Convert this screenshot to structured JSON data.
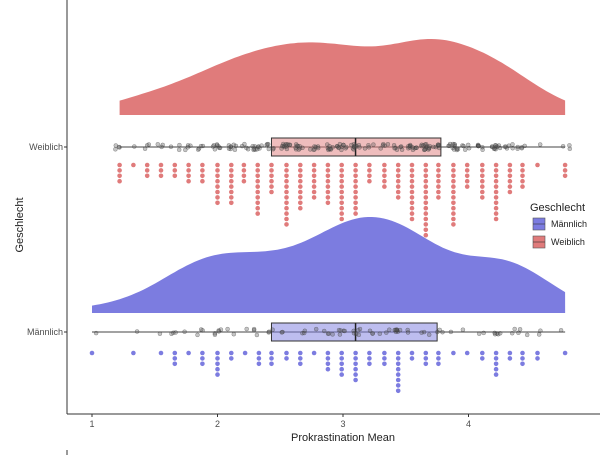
{
  "chart_data": {
    "type": "raincloud",
    "xlabel": "Prokrastination Mean",
    "ylabel": "Geschlecht",
    "xlim": [
      0.8,
      4.8
    ],
    "xticks": [
      "1",
      "2",
      "3",
      "4"
    ],
    "grid": false,
    "legend": {
      "title": "Geschlecht",
      "position": "right",
      "entries": [
        "Männlich",
        "Weiblich"
      ]
    },
    "colors": {
      "Männlich": "#7c7ce0",
      "Weiblich": "#e07b7b"
    },
    "series": [
      {
        "name": "Weiblich",
        "box": {
          "min": 1.22,
          "q1": 2.43,
          "median": 3.1,
          "q3": 3.78,
          "max": 4.77
        },
        "bins": [
          1.22,
          1.33,
          1.44,
          1.55,
          1.66,
          1.77,
          1.88,
          2.0,
          2.11,
          2.21,
          2.32,
          2.43,
          2.55,
          2.66,
          2.77,
          2.88,
          2.99,
          3.1,
          3.21,
          3.33,
          3.44,
          3.55,
          3.66,
          3.76,
          3.88,
          3.99,
          4.11,
          4.22,
          4.33,
          4.43,
          4.55,
          4.77
        ],
        "counts": [
          4,
          1,
          3,
          3,
          3,
          4,
          4,
          8,
          8,
          4,
          10,
          6,
          12,
          9,
          7,
          8,
          11,
          10,
          4,
          5,
          7,
          11,
          14,
          7,
          12,
          5,
          7,
          11,
          6,
          5,
          1,
          3
        ]
      },
      {
        "name": "Männlich",
        "box": {
          "min": 1.0,
          "q1": 2.43,
          "median": 3.1,
          "q3": 3.75,
          "max": 4.77
        },
        "bins": [
          1.0,
          1.33,
          1.55,
          1.66,
          1.77,
          1.88,
          2.0,
          2.11,
          2.22,
          2.33,
          2.43,
          2.55,
          2.66,
          2.77,
          2.88,
          2.99,
          3.1,
          3.21,
          3.33,
          3.44,
          3.55,
          3.66,
          3.76,
          3.88,
          3.99,
          4.11,
          4.22,
          4.33,
          4.43,
          4.55,
          4.77
        ],
        "counts": [
          1,
          1,
          1,
          3,
          1,
          3,
          5,
          2,
          1,
          3,
          3,
          2,
          3,
          1,
          4,
          5,
          6,
          3,
          3,
          8,
          2,
          3,
          3,
          1,
          1,
          2,
          5,
          2,
          3,
          2,
          1
        ]
      }
    ]
  }
}
